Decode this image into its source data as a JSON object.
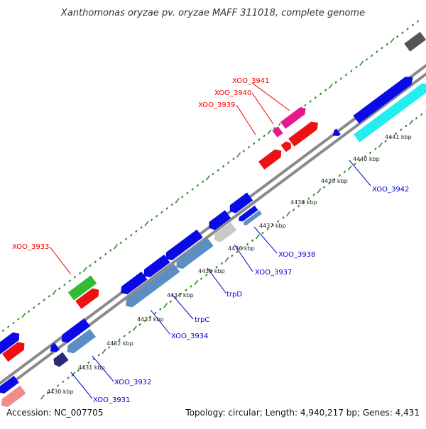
{
  "title": "Xanthomonas oryzae pv. oryzae MAFF 311018, complete genome",
  "footer": {
    "accession": "Accession: NC_007705",
    "summary": "Topology: circular; Length: 4,940,217 bp; Genes: 4,431"
  },
  "kbp_ticks": [
    "4430 kbp",
    "4431 kbp",
    "4432 kbp",
    "4433 kbp",
    "4434 kbp",
    "4435 kbp",
    "4436 kbp",
    "4437 kbp",
    "4438 kbp",
    "4439 kbp",
    "4440 kbp",
    "4441 kbp"
  ],
  "labels_upper": [
    "XOO_3933",
    "XOO_3939",
    "XOO_3940",
    "XOO_3941"
  ],
  "labels_lower": [
    "XOO_3931",
    "XOO_3932",
    "XOO_3934",
    "trpC",
    "trpD",
    "XOO_3937",
    "XOO_3938",
    "XOO_3942"
  ],
  "colors": {
    "backbone": "#8a8a8a",
    "dots": "#2e8b2e",
    "label_upper": "#ee0000",
    "label_lower": "#0000cc",
    "blue": "#0a0ae6",
    "steel": "#5b8fc4",
    "red": "#ee1111",
    "green": "#33bb33",
    "magenta": "#e6178f",
    "cyan": "#22eeee",
    "gray": "#c8c8c8",
    "navy": "#2a2a7a",
    "salmon": "#f28b8b",
    "dark": "#555555"
  }
}
